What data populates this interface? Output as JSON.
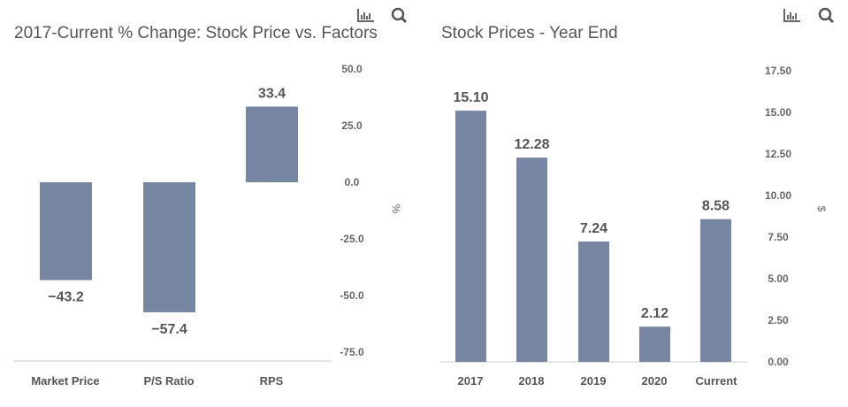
{
  "chart_data": [
    {
      "type": "bar",
      "title": "2017-Current % Change: Stock Price vs. Factors",
      "categories": [
        "Market Price",
        "P/S Ratio",
        "RPS"
      ],
      "values": [
        -43.2,
        -57.4,
        33.4
      ],
      "labels": [
        "−43.2",
        "−57.4",
        "33.4"
      ],
      "ylabel": "%",
      "ylim": [
        -75,
        50
      ],
      "yticks": [
        "50.0",
        "25.0",
        "0.0",
        "-25.0",
        "-50.0",
        "-75.0"
      ],
      "ytick_values": [
        50,
        25,
        0,
        -25,
        -50,
        -75
      ],
      "color": "#7686a2"
    },
    {
      "type": "bar",
      "title": "Stock Prices - Year End",
      "categories": [
        "2017",
        "2018",
        "2019",
        "2020",
        "Current"
      ],
      "values": [
        15.1,
        12.28,
        7.24,
        2.12,
        8.58
      ],
      "labels": [
        "15.10",
        "12.28",
        "7.24",
        "2.12",
        "8.58"
      ],
      "ylabel": "$",
      "ylim": [
        0,
        17.5
      ],
      "yticks": [
        "17.50",
        "15.00",
        "12.50",
        "10.00",
        "7.50",
        "5.00",
        "2.50",
        "0.00"
      ],
      "ytick_values": [
        17.5,
        15,
        12.5,
        10,
        7.5,
        5,
        2.5,
        0
      ],
      "color": "#7686a2"
    }
  ],
  "icons": {
    "chart": "bar-chart-icon",
    "search": "search-icon"
  }
}
